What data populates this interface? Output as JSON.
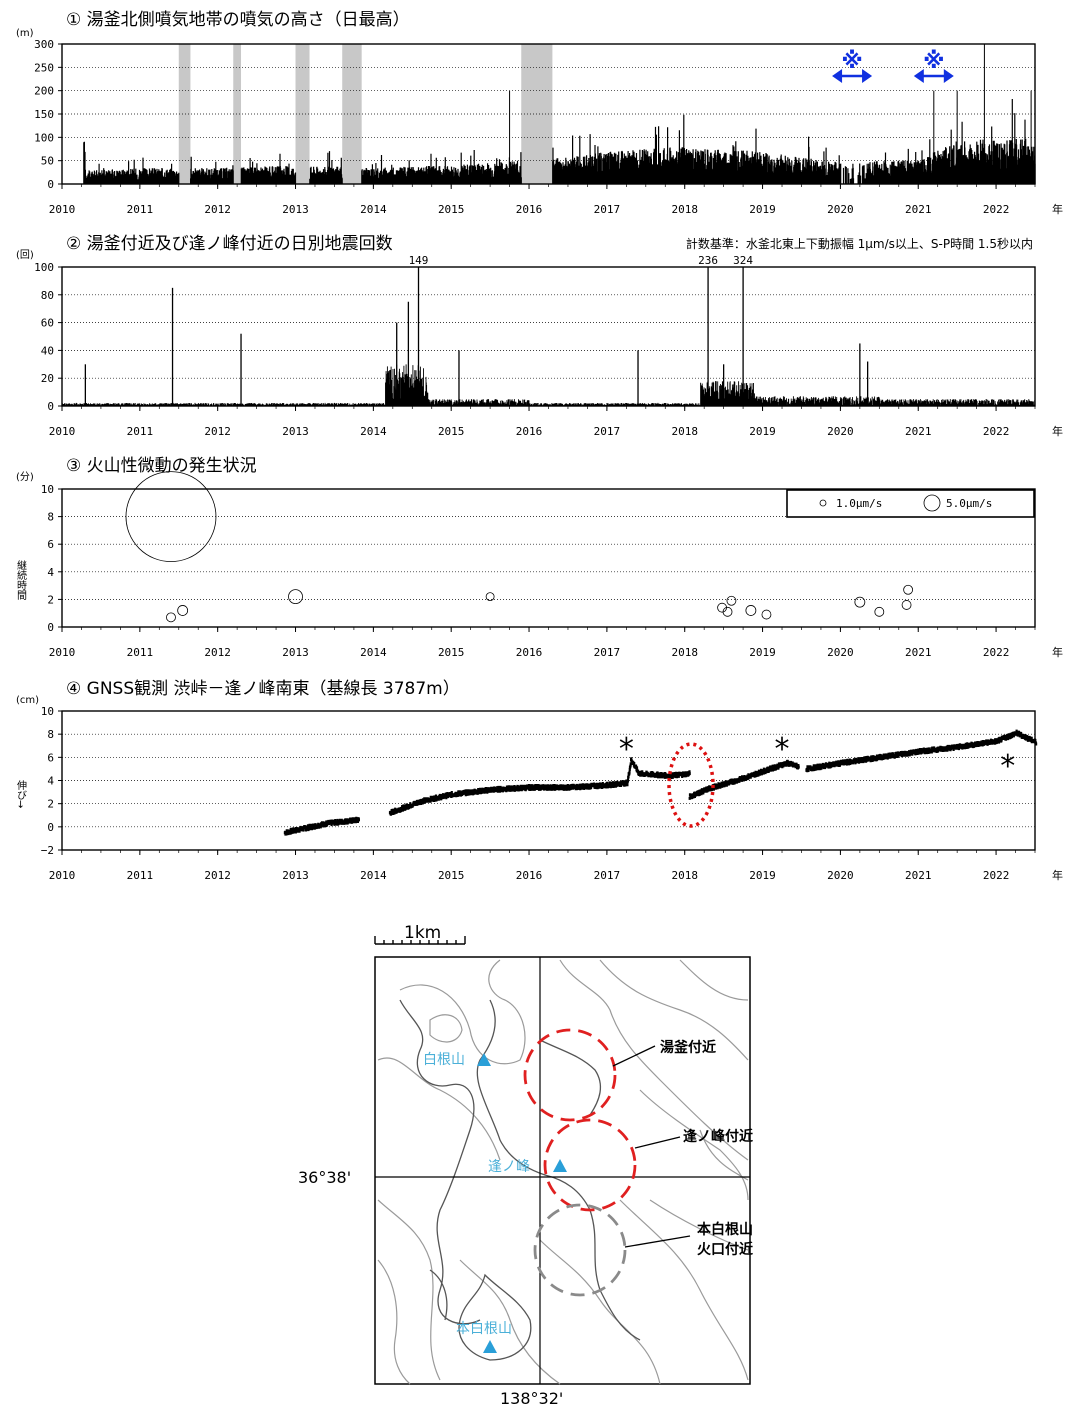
{
  "panels": {
    "p1": {
      "title": "① 湯釜北側噴気地帯の噴気の高さ（日最高）",
      "unit": "(m)",
      "yticks": [
        "300",
        "250",
        "200",
        "150",
        "100",
        "50",
        "0"
      ],
      "marker_glyph": "※"
    },
    "p2": {
      "title": "② 湯釜付近及び逢ノ峰付近の日別地震回数",
      "unit": "(回)",
      "note": "計数基準：水釜北東上下動振幅 1μm/s以上、S-P時間 1.5秒以内",
      "yticks": [
        "100",
        "80",
        "60",
        "40",
        "20",
        "0"
      ],
      "peak_labels": [
        "149",
        "236",
        "324"
      ]
    },
    "p3": {
      "title": "③ 火山性微動の発生状況",
      "unit": "(分)",
      "ylabel": "継続時間",
      "yticks": [
        "10",
        "8",
        "6",
        "4",
        "2",
        "0"
      ],
      "legend_small": "1.0μm/s",
      "legend_large": "5.0μm/s"
    },
    "p4": {
      "title": "④ GNSS観測 渋峠－逢ノ峰南東（基線長 3787m）",
      "unit": "(cm)",
      "ylabel": "伸び→",
      "yticks": [
        "10",
        "8",
        "6",
        "4",
        "2",
        "0",
        "−2"
      ],
      "asterisk": "*"
    }
  },
  "xticks": [
    "2010",
    "2011",
    "2012",
    "2013",
    "2014",
    "2015",
    "2016",
    "2017",
    "2018",
    "2019",
    "2020",
    "2021",
    "2022"
  ],
  "year_suffix": "年",
  "map": {
    "scale_label": "1km",
    "lat_label": "36°38'",
    "lon_label": "138°32'",
    "area_labels": [
      "湯釜付近",
      "逢ノ峰付近",
      "本白根山",
      "火口付近"
    ],
    "peaks": [
      "白根山",
      "逢ノ峰",
      "本白根山"
    ]
  },
  "chart_data": [
    {
      "type": "bar",
      "title": "① 湯釜北側噴気地帯の噴気の高さ（日最高）",
      "ylabel": "(m)",
      "xlim": [
        2010,
        2022.5
      ],
      "ylim": [
        0,
        300
      ],
      "missing_periods": [
        [
          2011.5,
          2011.65
        ],
        [
          2012.2,
          2012.3
        ],
        [
          2013.0,
          2013.18
        ],
        [
          2013.6,
          2013.85
        ],
        [
          2015.9,
          2016.3
        ]
      ],
      "notable_peaks": [
        {
          "x": 2015.75,
          "y": 200
        },
        {
          "x": 2021.2,
          "y": 200
        },
        {
          "x": 2021.5,
          "y": 200
        },
        {
          "x": 2021.85,
          "y": 300
        },
        {
          "x": 2022.45,
          "y": 200
        }
      ],
      "typical_level": [
        {
          "x": 2010.3,
          "y": 25
        },
        {
          "x": 2011.0,
          "y": 30
        },
        {
          "x": 2012.0,
          "y": 30
        },
        {
          "x": 2013.0,
          "y": 35
        },
        {
          "x": 2014.0,
          "y": 30
        },
        {
          "x": 2015.0,
          "y": 35
        },
        {
          "x": 2016.5,
          "y": 50
        },
        {
          "x": 2017.0,
          "y": 60
        },
        {
          "x": 2018.0,
          "y": 70
        },
        {
          "x": 2019.0,
          "y": 60
        },
        {
          "x": 2020.0,
          "y": 40
        },
        {
          "x": 2021.0,
          "y": 45
        },
        {
          "x": 2021.5,
          "y": 80
        },
        {
          "x": 2022.0,
          "y": 85
        }
      ],
      "markers": [
        {
          "x": 2020.15,
          "label": "※"
        },
        {
          "x": 2021.2,
          "label": "※"
        }
      ]
    },
    {
      "type": "bar",
      "title": "② 湯釜付近及び逢ノ峰付近の日別地震回数",
      "ylabel": "(回)",
      "xlim": [
        2010,
        2022.5
      ],
      "ylim": [
        0,
        100
      ],
      "peaks": [
        {
          "x": 2010.3,
          "y": 30
        },
        {
          "x": 2011.42,
          "y": 85
        },
        {
          "x": 2012.3,
          "y": 52
        },
        {
          "x": 2014.3,
          "y": 60
        },
        {
          "x": 2014.45,
          "y": 75
        },
        {
          "x": 2014.58,
          "y": 149
        },
        {
          "x": 2015.1,
          "y": 40
        },
        {
          "x": 2017.4,
          "y": 40
        },
        {
          "x": 2018.3,
          "y": 236
        },
        {
          "x": 2018.5,
          "y": 30
        },
        {
          "x": 2018.75,
          "y": 324
        },
        {
          "x": 2020.25,
          "y": 45
        },
        {
          "x": 2020.35,
          "y": 32
        }
      ],
      "baseline": 3
    },
    {
      "type": "scatter",
      "title": "③ 火山性微動の発生状況",
      "ylabel": "継続時間",
      "unit": "(分)",
      "xlim": [
        2010,
        2022.5
      ],
      "ylim": [
        0,
        10
      ],
      "points": [
        {
          "x": 2011.4,
          "y": 8.0,
          "amp": 5.0
        },
        {
          "x": 2011.4,
          "y": 0.7,
          "amp": 0.5
        },
        {
          "x": 2011.55,
          "y": 1.2,
          "amp": 0.6
        },
        {
          "x": 2013.0,
          "y": 2.2,
          "amp": 1.0
        },
        {
          "x": 2015.5,
          "y": 2.2,
          "amp": 0.4
        },
        {
          "x": 2018.48,
          "y": 1.4,
          "amp": 0.5
        },
        {
          "x": 2018.55,
          "y": 1.1,
          "amp": 0.5
        },
        {
          "x": 2018.6,
          "y": 1.9,
          "amp": 0.5
        },
        {
          "x": 2018.85,
          "y": 1.2,
          "amp": 0.6
        },
        {
          "x": 2019.05,
          "y": 0.9,
          "amp": 0.5
        },
        {
          "x": 2020.25,
          "y": 1.8,
          "amp": 0.6
        },
        {
          "x": 2020.5,
          "y": 1.1,
          "amp": 0.5
        },
        {
          "x": 2020.85,
          "y": 1.6,
          "amp": 0.5
        },
        {
          "x": 2020.87,
          "y": 2.7,
          "amp": 0.5
        }
      ]
    },
    {
      "type": "scatter",
      "title": "④ GNSS観測 渋峠－逢ノ峰南東（基線長 3787m）",
      "ylabel": "伸び→",
      "unit": "(cm)",
      "xlim": [
        2010,
        2022.5
      ],
      "ylim": [
        -2,
        10
      ],
      "segments": [
        [
          [
            2012.85,
            -0.5
          ],
          [
            2013.4,
            0.3
          ],
          [
            2013.8,
            0.6
          ]
        ],
        [
          [
            2014.2,
            1.2
          ],
          [
            2014.6,
            2.2
          ],
          [
            2015.0,
            2.8
          ],
          [
            2015.5,
            3.2
          ],
          [
            2016.0,
            3.4
          ],
          [
            2016.5,
            3.4
          ],
          [
            2017.0,
            3.6
          ],
          [
            2017.25,
            3.8
          ],
          [
            2017.3,
            5.8
          ],
          [
            2017.4,
            4.6
          ],
          [
            2017.8,
            4.4
          ],
          [
            2018.05,
            4.6
          ]
        ],
        [
          [
            2018.05,
            2.6
          ],
          [
            2018.3,
            3.3
          ],
          [
            2018.7,
            4.1
          ],
          [
            2019.0,
            4.8
          ],
          [
            2019.3,
            5.5
          ],
          [
            2019.45,
            5.2
          ]
        ],
        [
          [
            2019.55,
            5.0
          ],
          [
            2020.0,
            5.5
          ],
          [
            2020.5,
            6.0
          ],
          [
            2021.0,
            6.5
          ],
          [
            2021.5,
            6.9
          ],
          [
            2022.0,
            7.4
          ],
          [
            2022.25,
            8.1
          ],
          [
            2022.5,
            7.3
          ]
        ]
      ],
      "asterisks": [
        2017.25,
        2019.25,
        2022.15
      ]
    }
  ]
}
